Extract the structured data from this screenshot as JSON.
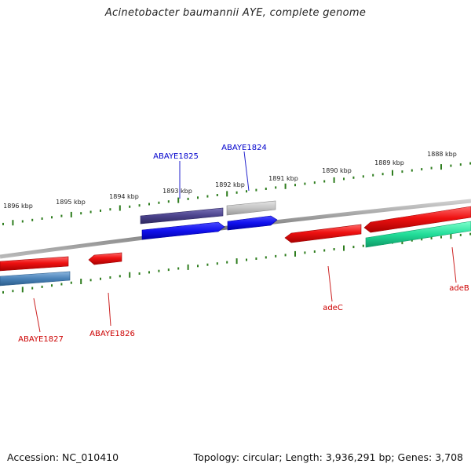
{
  "title": "Acinetobacter baumannii AYE, complete genome",
  "footer": {
    "accession": "Accession: NC_010410",
    "summary": "Topology: circular; Length: 3,936,291 bp; Genes: 3,708"
  },
  "scale": {
    "ticks": [
      {
        "label": "1896 kbp",
        "kbp": 1896
      },
      {
        "label": "1895 kbp",
        "kbp": 1895
      },
      {
        "label": "1894 kbp",
        "kbp": 1894
      },
      {
        "label": "1893 kbp",
        "kbp": 1893
      },
      {
        "label": "1892 kbp",
        "kbp": 1892
      },
      {
        "label": "1891 kbp",
        "kbp": 1891
      },
      {
        "label": "1890 kbp",
        "kbp": 1890
      },
      {
        "label": "1889 kbp",
        "kbp": 1889
      },
      {
        "label": "1888 kbp",
        "kbp": 1888
      }
    ]
  },
  "genes": [
    {
      "label": "ABAYE1825",
      "color_key": "blue"
    },
    {
      "label": "ABAYE1824",
      "color_key": "blue"
    },
    {
      "label": "ABAYE1827",
      "color_key": "red"
    },
    {
      "label": "ABAYE1826",
      "color_key": "red"
    },
    {
      "label": "adeC",
      "color_key": "red"
    },
    {
      "label": "adeB",
      "color_key": "red"
    }
  ],
  "colors": {
    "backbone": "#8a8a8a",
    "tick": "#2e7d1e",
    "red_feature": "#ee1111",
    "blue_feature": "#1111ee",
    "navy_feature": "#4b438c",
    "grey_feature": "#c4c4c4",
    "steel_feature": "#4a82b8",
    "green_feature": "#22dd99",
    "label_blue": "#0000cc",
    "label_red": "#cc0000",
    "leader_blue": "#2222cc",
    "leader_red": "#cc2222"
  }
}
